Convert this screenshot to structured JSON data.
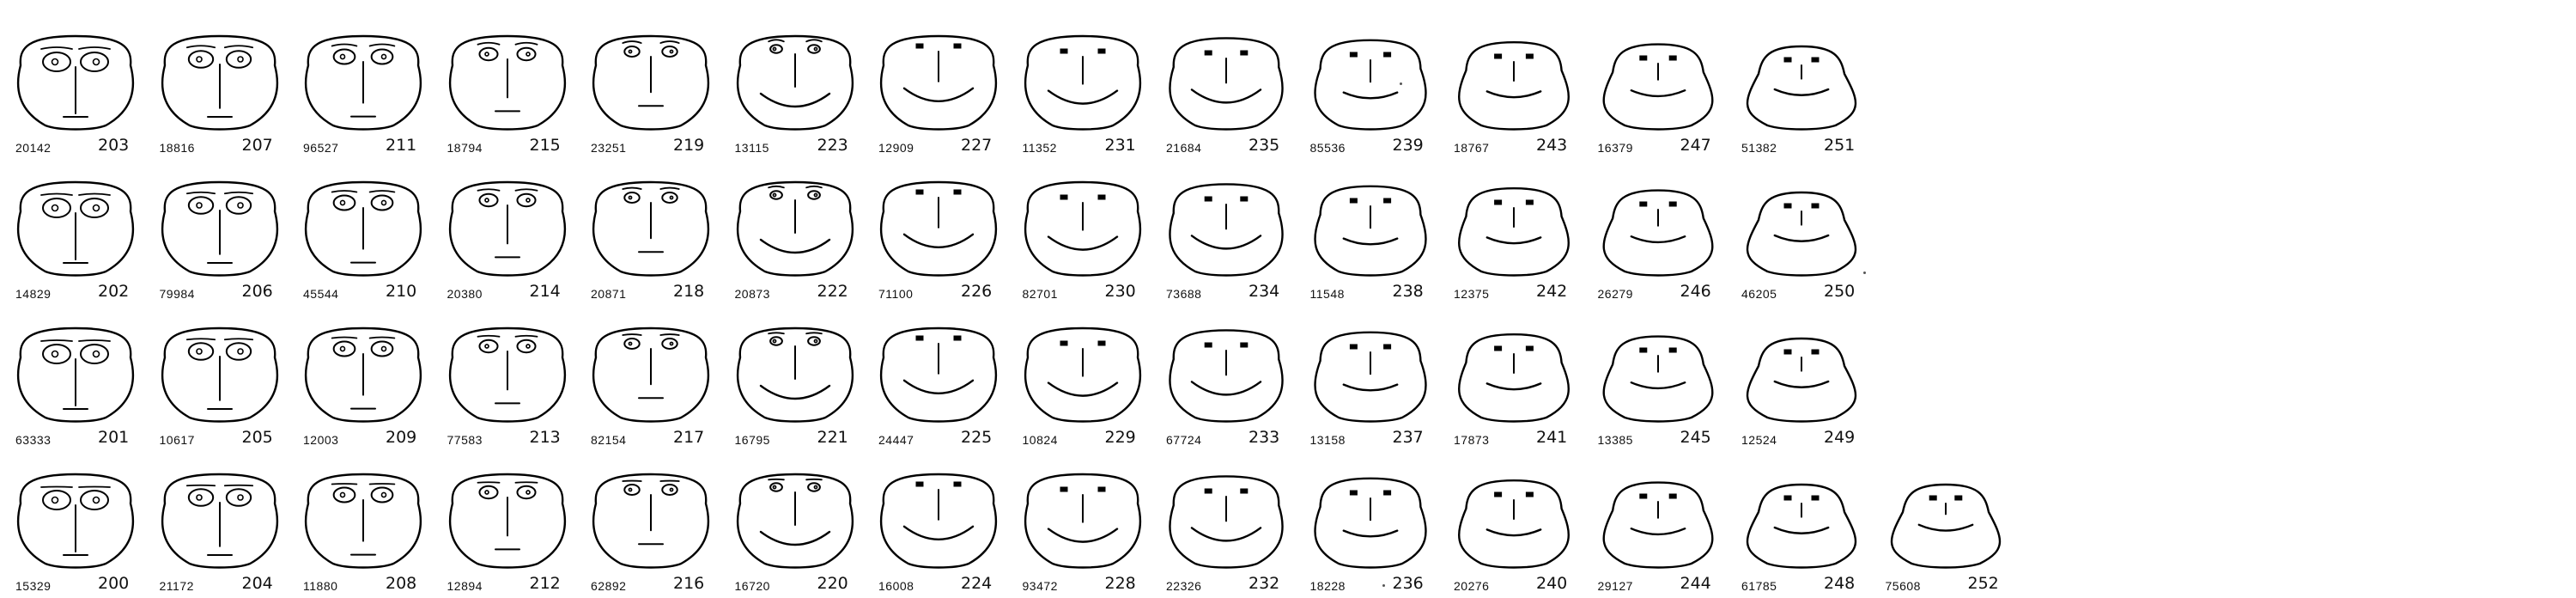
{
  "colors": {
    "ink": "#000000",
    "paper": "#ffffff"
  },
  "rows": [
    [
      {
        "code": "20142",
        "num": "203"
      },
      {
        "code": "18816",
        "num": "207"
      },
      {
        "code": "96527",
        "num": "211"
      },
      {
        "code": "18794",
        "num": "215"
      },
      {
        "code": "23251",
        "num": "219"
      },
      {
        "code": "13115",
        "num": "223"
      },
      {
        "code": "12909",
        "num": "227"
      },
      {
        "code": "11352",
        "num": "231"
      },
      {
        "code": "21684",
        "num": "235"
      },
      {
        "code": "85536",
        "num": "239"
      },
      {
        "code": "18767",
        "num": "243"
      },
      {
        "code": "16379",
        "num": "247"
      },
      {
        "code": "51382",
        "num": "251"
      }
    ],
    [
      {
        "code": "14829",
        "num": "202"
      },
      {
        "code": "79984",
        "num": "206"
      },
      {
        "code": "45544",
        "num": "210"
      },
      {
        "code": "20380",
        "num": "214"
      },
      {
        "code": "20871",
        "num": "218"
      },
      {
        "code": "20873",
        "num": "222"
      },
      {
        "code": "71100",
        "num": "226"
      },
      {
        "code": "82701",
        "num": "230"
      },
      {
        "code": "73688",
        "num": "234"
      },
      {
        "code": "11548",
        "num": "238"
      },
      {
        "code": "12375",
        "num": "242"
      },
      {
        "code": "26279",
        "num": "246"
      },
      {
        "code": "46205",
        "num": "250"
      }
    ],
    [
      {
        "code": "63333",
        "num": "201"
      },
      {
        "code": "10617",
        "num": "205"
      },
      {
        "code": "12003",
        "num": "209"
      },
      {
        "code": "77583",
        "num": "213"
      },
      {
        "code": "82154",
        "num": "217"
      },
      {
        "code": "16795",
        "num": "221"
      },
      {
        "code": "24447",
        "num": "225"
      },
      {
        "code": "10824",
        "num": "229"
      },
      {
        "code": "67724",
        "num": "233"
      },
      {
        "code": "13158",
        "num": "237"
      },
      {
        "code": "17873",
        "num": "241"
      },
      {
        "code": "13385",
        "num": "245"
      },
      {
        "code": "12524",
        "num": "249"
      }
    ],
    [
      {
        "code": "15329",
        "num": "200"
      },
      {
        "code": "21172",
        "num": "204"
      },
      {
        "code": "11880",
        "num": "208"
      },
      {
        "code": "12894",
        "num": "212"
      },
      {
        "code": "62892",
        "num": "216"
      },
      {
        "code": "16720",
        "num": "220"
      },
      {
        "code": "16008",
        "num": "224"
      },
      {
        "code": "93472",
        "num": "228"
      },
      {
        "code": "22326",
        "num": "232"
      },
      {
        "code": "18228",
        "num": "236"
      },
      {
        "code": "20276",
        "num": "240"
      },
      {
        "code": "29127",
        "num": "244"
      },
      {
        "code": "61785",
        "num": "248"
      },
      {
        "code": "75608",
        "num": "252"
      }
    ]
  ]
}
